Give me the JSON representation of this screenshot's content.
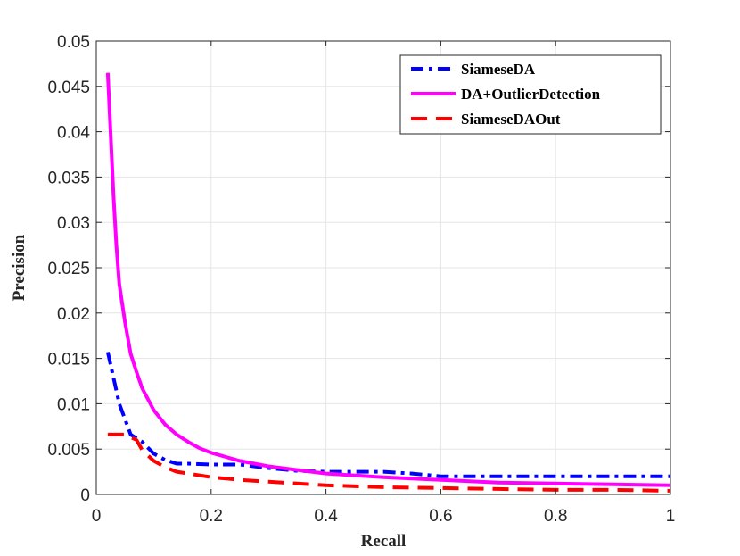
{
  "chart_data": {
    "type": "line",
    "title": "",
    "xlabel": "Recall",
    "ylabel": "Precision",
    "xlim": [
      0,
      1
    ],
    "ylim": [
      0,
      0.05
    ],
    "xticks": [
      0,
      0.2,
      0.4,
      0.6,
      0.8,
      1
    ],
    "xtick_labels": [
      "0",
      "0.2",
      "0.4",
      "0.6",
      "0.8",
      "1"
    ],
    "yticks": [
      0,
      0.005,
      0.01,
      0.015,
      0.02,
      0.025,
      0.03,
      0.035,
      0.04,
      0.045,
      0.05
    ],
    "ytick_labels": [
      "0",
      "0.005",
      "0.01",
      "0.015",
      "0.02",
      "0.025",
      "0.03",
      "0.035",
      "0.04",
      "0.045",
      "0.05"
    ],
    "grid": true,
    "legend_position": "top-right",
    "series": [
      {
        "name": "SiameseDA",
        "color": "#0000ff",
        "dash": "dash-dot",
        "x": [
          0.02,
          0.04,
          0.06,
          0.08,
          0.1,
          0.12,
          0.14,
          0.16,
          0.2,
          0.25,
          0.3,
          0.35,
          0.4,
          0.45,
          0.5,
          0.55,
          0.6,
          0.7,
          0.8,
          0.9,
          1.0
        ],
        "y": [
          0.0157,
          0.01,
          0.0066,
          0.0058,
          0.0045,
          0.0038,
          0.0034,
          0.0034,
          0.0033,
          0.0033,
          0.0029,
          0.0026,
          0.0025,
          0.0025,
          0.0025,
          0.0023,
          0.002,
          0.002,
          0.002,
          0.002,
          0.002
        ]
      },
      {
        "name": "DA+OutlierDetection",
        "color": "#ff00ff",
        "dash": "solid",
        "x": [
          0.02,
          0.03,
          0.035,
          0.04,
          0.05,
          0.06,
          0.07,
          0.08,
          0.1,
          0.12,
          0.14,
          0.16,
          0.18,
          0.2,
          0.25,
          0.3,
          0.35,
          0.4,
          0.5,
          0.6,
          0.7,
          0.8,
          0.9,
          1.0
        ],
        "y": [
          0.0465,
          0.033,
          0.0275,
          0.0232,
          0.019,
          0.0155,
          0.0135,
          0.0117,
          0.0093,
          0.0077,
          0.0066,
          0.0058,
          0.0051,
          0.0046,
          0.0037,
          0.0031,
          0.0027,
          0.0023,
          0.0019,
          0.0016,
          0.0013,
          0.0012,
          0.0011,
          0.001
        ]
      },
      {
        "name": "SiameseDAOut",
        "color": "#ff0000",
        "dash": "dashed",
        "x": [
          0.02,
          0.04,
          0.05,
          0.07,
          0.08,
          0.1,
          0.12,
          0.14,
          0.16,
          0.2,
          0.25,
          0.3,
          0.35,
          0.4,
          0.5,
          0.6,
          0.7,
          0.8,
          0.9,
          1.0
        ],
        "y": [
          0.0066,
          0.0066,
          0.0066,
          0.006,
          0.0049,
          0.0037,
          0.003,
          0.0025,
          0.0023,
          0.0019,
          0.0016,
          0.0014,
          0.0012,
          0.001,
          0.0008,
          0.0007,
          0.0006,
          0.0005,
          0.0005,
          0.0004
        ]
      }
    ]
  }
}
